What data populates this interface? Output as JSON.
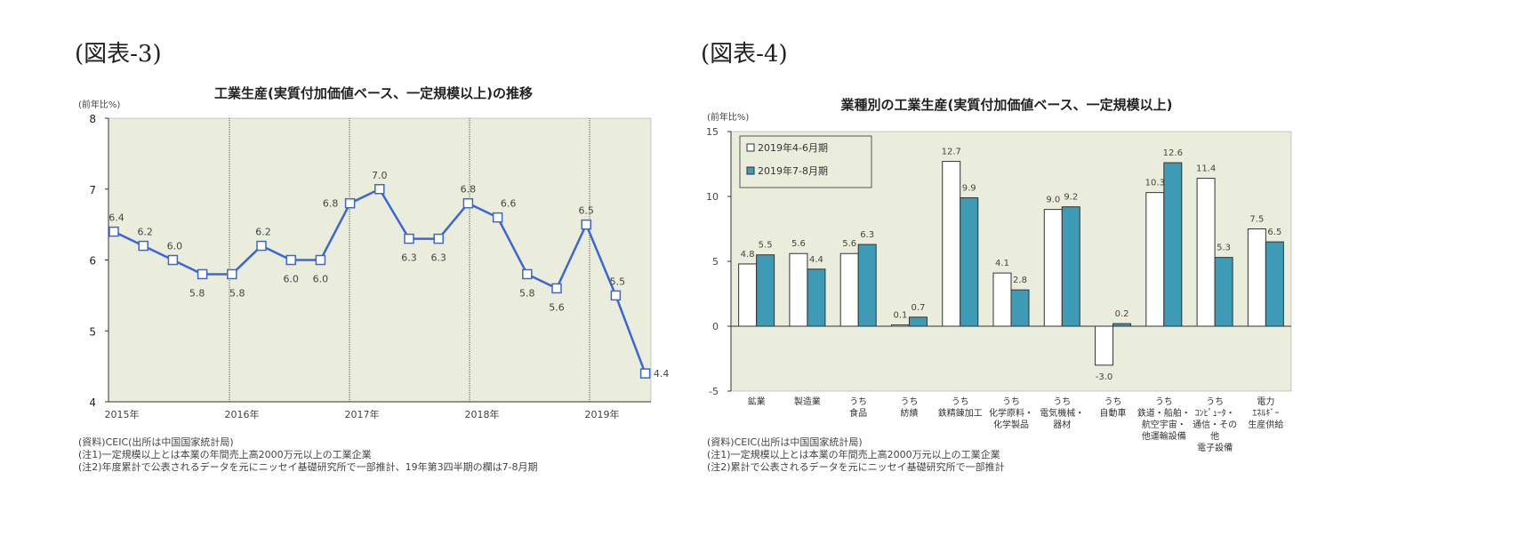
{
  "figure_labels": [
    "(図表-3)",
    "(図表-4)"
  ],
  "chart_data": [
    {
      "type": "line",
      "title": "工業生産(実質付加価値ベース、一定規模以上)の推移",
      "ylabel": "(前年比%)",
      "ylim": [
        4,
        8
      ],
      "yticks": [
        "4",
        "5",
        "6",
        "7",
        "8"
      ],
      "xticks": [
        "2015年",
        "2016年",
        "2017年",
        "2018年",
        "2019年"
      ],
      "grid": "vertical year lines",
      "series": [
        {
          "name": "工業生産",
          "color": "#3a66d6",
          "values": [
            6.4,
            6.2,
            6.0,
            5.8,
            5.8,
            6.2,
            6.0,
            6.0,
            6.8,
            7.0,
            6.3,
            6.3,
            6.8,
            6.6,
            5.8,
            5.6,
            6.5,
            5.5,
            4.4
          ],
          "labels": [
            "6.4",
            "6.2",
            "6.0",
            "5.8",
            "5.8",
            "6.2",
            "6.0",
            "6.0",
            "6.8",
            "7.0",
            "6.3",
            "6.3",
            "6.8",
            "6.6",
            "5.8",
            "5.6",
            "6.5",
            "5.5",
            "4.4"
          ]
        }
      ],
      "notes": [
        "(資料)CEIC(出所は中国国家統計局)",
        "(注1)一定規模以上とは本業の年間売上高2000万元以上の工業企業",
        "(注2)年度累計で公表されるデータを元にニッセイ基礎研究所で一部推計、19年第3四半期の欄は7-8月期"
      ]
    },
    {
      "type": "bar",
      "title": "業種別の工業生産(実質付加価値ベース、一定規模以上)",
      "ylabel": "(前年比%)",
      "ylim": [
        -5,
        15
      ],
      "yticks": [
        "-5",
        "0",
        "5",
        "10",
        "15"
      ],
      "legend_position": "top-left",
      "categories": [
        [
          "鉱業"
        ],
        [
          "製造業"
        ],
        [
          "うち",
          "食品"
        ],
        [
          "うち",
          "紡績"
        ],
        [
          "うち",
          "鉄精錬加工"
        ],
        [
          "うち",
          "化学原料・",
          "化学製品"
        ],
        [
          "うち",
          "電気機械・",
          "器材"
        ],
        [
          "うち",
          "自動車"
        ],
        [
          "うち",
          "鉄道・船舶・",
          "航空宇宙・",
          "他運輸設備"
        ],
        [
          "うち",
          "ｺﾝﾋﾟｭｰﾀ・",
          "通信・その",
          "他",
          "電子設備"
        ],
        [
          "電力",
          "ｴﾈﾙｷﾞｰ",
          "生産供給"
        ]
      ],
      "series": [
        {
          "name": "2019年4-6月期",
          "color": "#ffffff",
          "values": [
            4.8,
            5.6,
            5.6,
            0.1,
            12.7,
            4.1,
            9.0,
            -3.0,
            10.3,
            11.4,
            7.5
          ],
          "labels": [
            "4.8",
            "5.6",
            "5.6",
            "0.1",
            "12.7",
            "4.1",
            "9.0",
            "-3.0",
            "10.3",
            "11.4",
            "7.5"
          ]
        },
        {
          "name": "2019年7-8月期",
          "color": "#3d9bb5",
          "values": [
            5.5,
            4.4,
            6.3,
            0.7,
            9.9,
            2.8,
            9.2,
            0.2,
            12.6,
            5.3,
            6.5
          ],
          "labels": [
            "5.5",
            "4.4",
            "6.3",
            "0.7",
            "9.9",
            "2.8",
            "9.2",
            "0.2",
            "12.6",
            "5.3",
            "6.5"
          ]
        }
      ],
      "notes": [
        "(資料)CEIC(出所は中国国家統計局)",
        "(注1)一定規模以上とは本業の年間売上高2000万元以上の工業企業",
        "(注2)累計で公表されるデータを元にニッセイ基礎研究所で一部推計"
      ]
    }
  ]
}
